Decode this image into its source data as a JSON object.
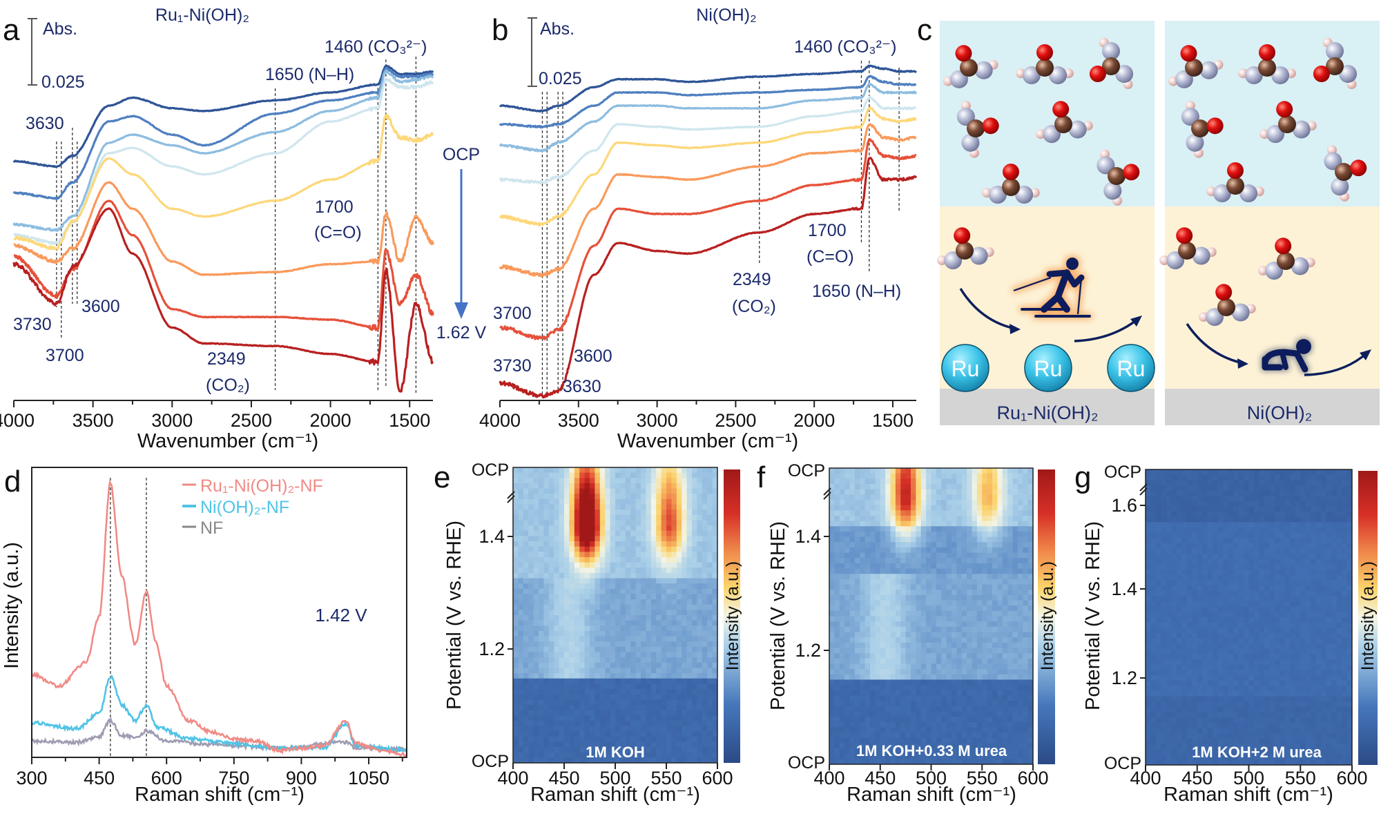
{
  "chart_data": [
    {
      "panel": "a",
      "type": "line",
      "title": "Ru₁-Ni(OH)₂",
      "xlabel": "Wavenumber (cm⁻¹)",
      "xlim": [
        4000,
        1350
      ],
      "x_ticks": [
        4000,
        3500,
        3000,
        2500,
        2000,
        1500
      ],
      "scale_bar": {
        "top_label": "Abs.",
        "bottom_label": "0.025",
        "value": 0.025
      },
      "reference_lines": [
        3730,
        3700,
        3630,
        3600,
        2349,
        1700,
        1650,
        1460
      ],
      "annotations": [
        "3630",
        "3600",
        "3730",
        "3700",
        "2349",
        "(CO₂)",
        "1700",
        "(C=O)",
        "1650 (N–H)",
        "1460 (CO₃²⁻)"
      ],
      "x": [
        4000,
        3730,
        3630,
        3400,
        3250,
        3000,
        2800,
        2349,
        2000,
        1700,
        1650,
        1560,
        1460,
        1350
      ],
      "series": [
        {
          "color": "#2f5597",
          "values": [
            0.137,
            0.135,
            0.139,
            0.158,
            0.161,
            0.157,
            0.156,
            0.16,
            0.163,
            0.166,
            0.173,
            0.17,
            0.17,
            0.171
          ]
        },
        {
          "color": "#4f7fc0",
          "values": [
            0.125,
            0.123,
            0.129,
            0.152,
            0.154,
            0.147,
            0.143,
            0.155,
            0.16,
            0.163,
            0.172,
            0.169,
            0.169,
            0.17
          ]
        },
        {
          "color": "#8dbde0",
          "values": [
            0.113,
            0.111,
            0.116,
            0.144,
            0.147,
            0.143,
            0.14,
            0.148,
            0.156,
            0.161,
            0.171,
            0.167,
            0.168,
            0.169
          ]
        },
        {
          "color": "#cfe6ee",
          "values": [
            0.109,
            0.106,
            0.114,
            0.14,
            0.142,
            0.135,
            0.132,
            0.14,
            0.152,
            0.157,
            0.168,
            0.165,
            0.165,
            0.167
          ]
        },
        {
          "color": "#fdd87a",
          "values": [
            0.108,
            0.104,
            0.114,
            0.138,
            0.132,
            0.119,
            0.116,
            0.122,
            0.13,
            0.137,
            0.154,
            0.146,
            0.145,
            0.147
          ]
        },
        {
          "color": "#f99a5c",
          "values": [
            0.105,
            0.099,
            0.104,
            0.129,
            0.119,
            0.099,
            0.094,
            0.095,
            0.098,
            0.099,
            0.117,
            0.099,
            0.116,
            0.106
          ]
        },
        {
          "color": "#e6503a",
          "values": [
            0.101,
            0.086,
            0.096,
            0.122,
            0.109,
            0.081,
            0.078,
            0.078,
            0.077,
            0.074,
            0.103,
            0.083,
            0.094,
            0.079
          ]
        },
        {
          "color": "#b82020",
          "values": [
            0.098,
            0.083,
            0.097,
            0.119,
            0.102,
            0.074,
            0.068,
            0.067,
            0.064,
            0.061,
            0.096,
            0.05,
            0.083,
            0.061
          ]
        }
      ]
    },
    {
      "panel": "b",
      "type": "line",
      "title": "Ni(OH)₂",
      "xlabel": "Wavenumber (cm⁻¹)",
      "xlim": [
        4000,
        1350
      ],
      "x_ticks": [
        4000,
        3500,
        3000,
        2500,
        2000,
        1500
      ],
      "scale_bar": {
        "top_label": "Abs.",
        "bottom_label": "0.025",
        "value": 0.025
      },
      "reference_lines": [
        3730,
        3700,
        3630,
        3600,
        2349,
        1700,
        1650,
        1460
      ],
      "annotations": [
        "1460 (CO₃²⁻)",
        "1700",
        "(C=O)",
        "1650 (N–H)",
        "2349",
        "(CO₂)",
        "3700",
        "3730",
        "3600",
        "3630"
      ],
      "x": [
        4000,
        3730,
        3630,
        3400,
        3250,
        3000,
        2800,
        2349,
        2000,
        1700,
        1650,
        1560,
        1460,
        1350
      ],
      "series": [
        {
          "color": "#2f5597",
          "values": [
            0.158,
            0.156,
            0.158,
            0.165,
            0.168,
            0.168,
            0.167,
            0.169,
            0.17,
            0.171,
            0.173,
            0.172,
            0.171,
            0.171
          ]
        },
        {
          "color": "#4f7fc0",
          "values": [
            0.151,
            0.15,
            0.151,
            0.158,
            0.163,
            0.163,
            0.162,
            0.163,
            0.164,
            0.165,
            0.169,
            0.167,
            0.166,
            0.166
          ]
        },
        {
          "color": "#8dbde0",
          "values": [
            0.143,
            0.141,
            0.144,
            0.152,
            0.158,
            0.158,
            0.157,
            0.157,
            0.16,
            0.161,
            0.166,
            0.163,
            0.163,
            0.163
          ]
        },
        {
          "color": "#cfe6ee",
          "values": [
            0.13,
            0.129,
            0.131,
            0.141,
            0.151,
            0.15,
            0.149,
            0.15,
            0.154,
            0.156,
            0.161,
            0.157,
            0.157,
            0.157
          ]
        },
        {
          "color": "#fdd87a",
          "values": [
            0.116,
            0.113,
            0.116,
            0.132,
            0.144,
            0.143,
            0.142,
            0.144,
            0.148,
            0.15,
            0.157,
            0.153,
            0.152,
            0.153
          ]
        },
        {
          "color": "#f99a5c",
          "values": [
            0.097,
            0.094,
            0.096,
            0.119,
            0.132,
            0.131,
            0.13,
            0.135,
            0.14,
            0.141,
            0.151,
            0.146,
            0.145,
            0.146
          ]
        },
        {
          "color": "#e6503a",
          "values": [
            0.074,
            0.07,
            0.073,
            0.105,
            0.119,
            0.117,
            0.117,
            0.122,
            0.128,
            0.13,
            0.145,
            0.139,
            0.138,
            0.139
          ]
        },
        {
          "color": "#b82020",
          "values": [
            0.053,
            0.048,
            0.05,
            0.094,
            0.106,
            0.103,
            0.102,
            0.11,
            0.117,
            0.119,
            0.138,
            0.13,
            0.13,
            0.131
          ]
        }
      ]
    },
    {
      "panel": "d",
      "type": "line",
      "xlabel": "Raman shift (cm⁻¹)",
      "ylabel": "Intensity (a.u.)",
      "xlim": [
        300,
        1135
      ],
      "x_ticks": [
        300,
        450,
        600,
        750,
        900,
        1050
      ],
      "annotation": "1.42 V",
      "reference_lines": [
        475,
        555
      ],
      "legend_position": "top-right",
      "series": [
        {
          "name": "Ru₁-Ni(OH)₂-NF",
          "color": "#f08a85",
          "x": [
            300,
            360,
            420,
            450,
            475,
            500,
            530,
            555,
            575,
            600,
            650,
            700,
            750,
            800,
            850,
            900,
            950,
            1000,
            1020,
            1080,
            1135
          ],
          "y": [
            0.286,
            0.246,
            0.326,
            0.485,
            0.946,
            0.628,
            0.39,
            0.573,
            0.405,
            0.246,
            0.127,
            0.087,
            0.064,
            0.056,
            0.024,
            0.032,
            0.04,
            0.127,
            0.048,
            0.024,
            0.008
          ]
        },
        {
          "name": "Ni(OH)₂-NF",
          "color": "#4fc3e6",
          "x": [
            300,
            400,
            450,
            475,
            500,
            530,
            555,
            580,
            650,
            750,
            850,
            950,
            1000,
            1020,
            1135
          ],
          "y": [
            0.119,
            0.099,
            0.151,
            0.278,
            0.183,
            0.127,
            0.179,
            0.103,
            0.064,
            0.048,
            0.032,
            0.032,
            0.115,
            0.04,
            0.024
          ]
        },
        {
          "name": "NF",
          "color": "#9d9cb2",
          "x": [
            300,
            400,
            450,
            475,
            500,
            530,
            555,
            600,
            700,
            850,
            1000,
            1020,
            1135
          ],
          "y": [
            0.056,
            0.052,
            0.072,
            0.127,
            0.076,
            0.068,
            0.091,
            0.056,
            0.044,
            0.032,
            0.052,
            0.032,
            0.028
          ]
        }
      ]
    },
    {
      "panel": "e",
      "type": "heatmap",
      "xlabel": "Raman shift (cm⁻¹)",
      "ylabel": "Potential (V vs. RHE)",
      "colorbar_label": "Intensity (a.u.)",
      "xlim": [
        400,
        600
      ],
      "x_ticks": [
        400,
        450,
        500,
        550,
        600
      ],
      "y_ticks": [
        "1.2",
        "1.4"
      ],
      "y_top_label": "OCP",
      "y_bottom_label": "OCP",
      "condition": "1M KOH",
      "baseline": 0.22,
      "peaks": [
        {
          "shift": 472,
          "potential": 1.42,
          "intensity": 1.0
        },
        {
          "shift": 553,
          "potential": 1.42,
          "intensity": 0.55
        }
      ]
    },
    {
      "panel": "f",
      "type": "heatmap",
      "xlabel": "Raman shift (cm⁻¹)",
      "ylabel": "Potential (V vs. RHE)",
      "colorbar_label": "Intensity (a.u.)",
      "xlim": [
        400,
        600
      ],
      "x_ticks": [
        400,
        450,
        500,
        550,
        600
      ],
      "y_ticks": [
        "1.2",
        "1.4"
      ],
      "y_top_label": "OCP",
      "y_bottom_label": "OCP",
      "condition": "1M KOH+0.33 M urea",
      "baseline": 0.22,
      "peaks": [
        {
          "shift": 475,
          "potential": 1.47,
          "intensity": 0.65
        },
        {
          "shift": 556,
          "potential": 1.47,
          "intensity": 0.36
        }
      ]
    },
    {
      "panel": "g",
      "type": "heatmap",
      "xlabel": "Raman shift (cm⁻¹)",
      "ylabel": "Potential (V vs. RHE)",
      "colorbar_label": "Intensity (a.u.)",
      "xlim": [
        400,
        600
      ],
      "x_ticks": [
        400,
        450,
        500,
        550,
        600
      ],
      "y_ticks": [
        "1.2",
        "1.4",
        "1.6"
      ],
      "y_top_label": "OCP",
      "y_bottom_label": "OCP",
      "condition": "1M KOH+2 M urea",
      "baseline": 0.1,
      "peaks": []
    }
  ],
  "potential_arrow": {
    "start": "OCP",
    "end": "1.62 V",
    "color": "#4472c4"
  },
  "panel_c": {
    "letter": "c",
    "left_label": "Ru₁-Ni(OH)₂",
    "right_label": "Ni(OH)₂",
    "atom_label": "Ru",
    "left_icon": "skier-icon",
    "right_icon": "crawling-baby-icon",
    "colors": {
      "solution": "#d9f0f5",
      "interface": "#fdf2d6",
      "substrate": "#d4d4d4",
      "oxygen": "#e01010",
      "carbon": "#7a4a35",
      "nitrogen": "#b8bdd6",
      "hydrogen": "#f2d0cc",
      "ru": "#3cc4e8",
      "icon": "#0d1f5c"
    }
  },
  "colormap": [
    "#2b4a86",
    "#4677bb",
    "#a9cfe8",
    "#f3f5e6",
    "#fbd36b",
    "#f08a4b",
    "#d73027",
    "#a01818"
  ]
}
